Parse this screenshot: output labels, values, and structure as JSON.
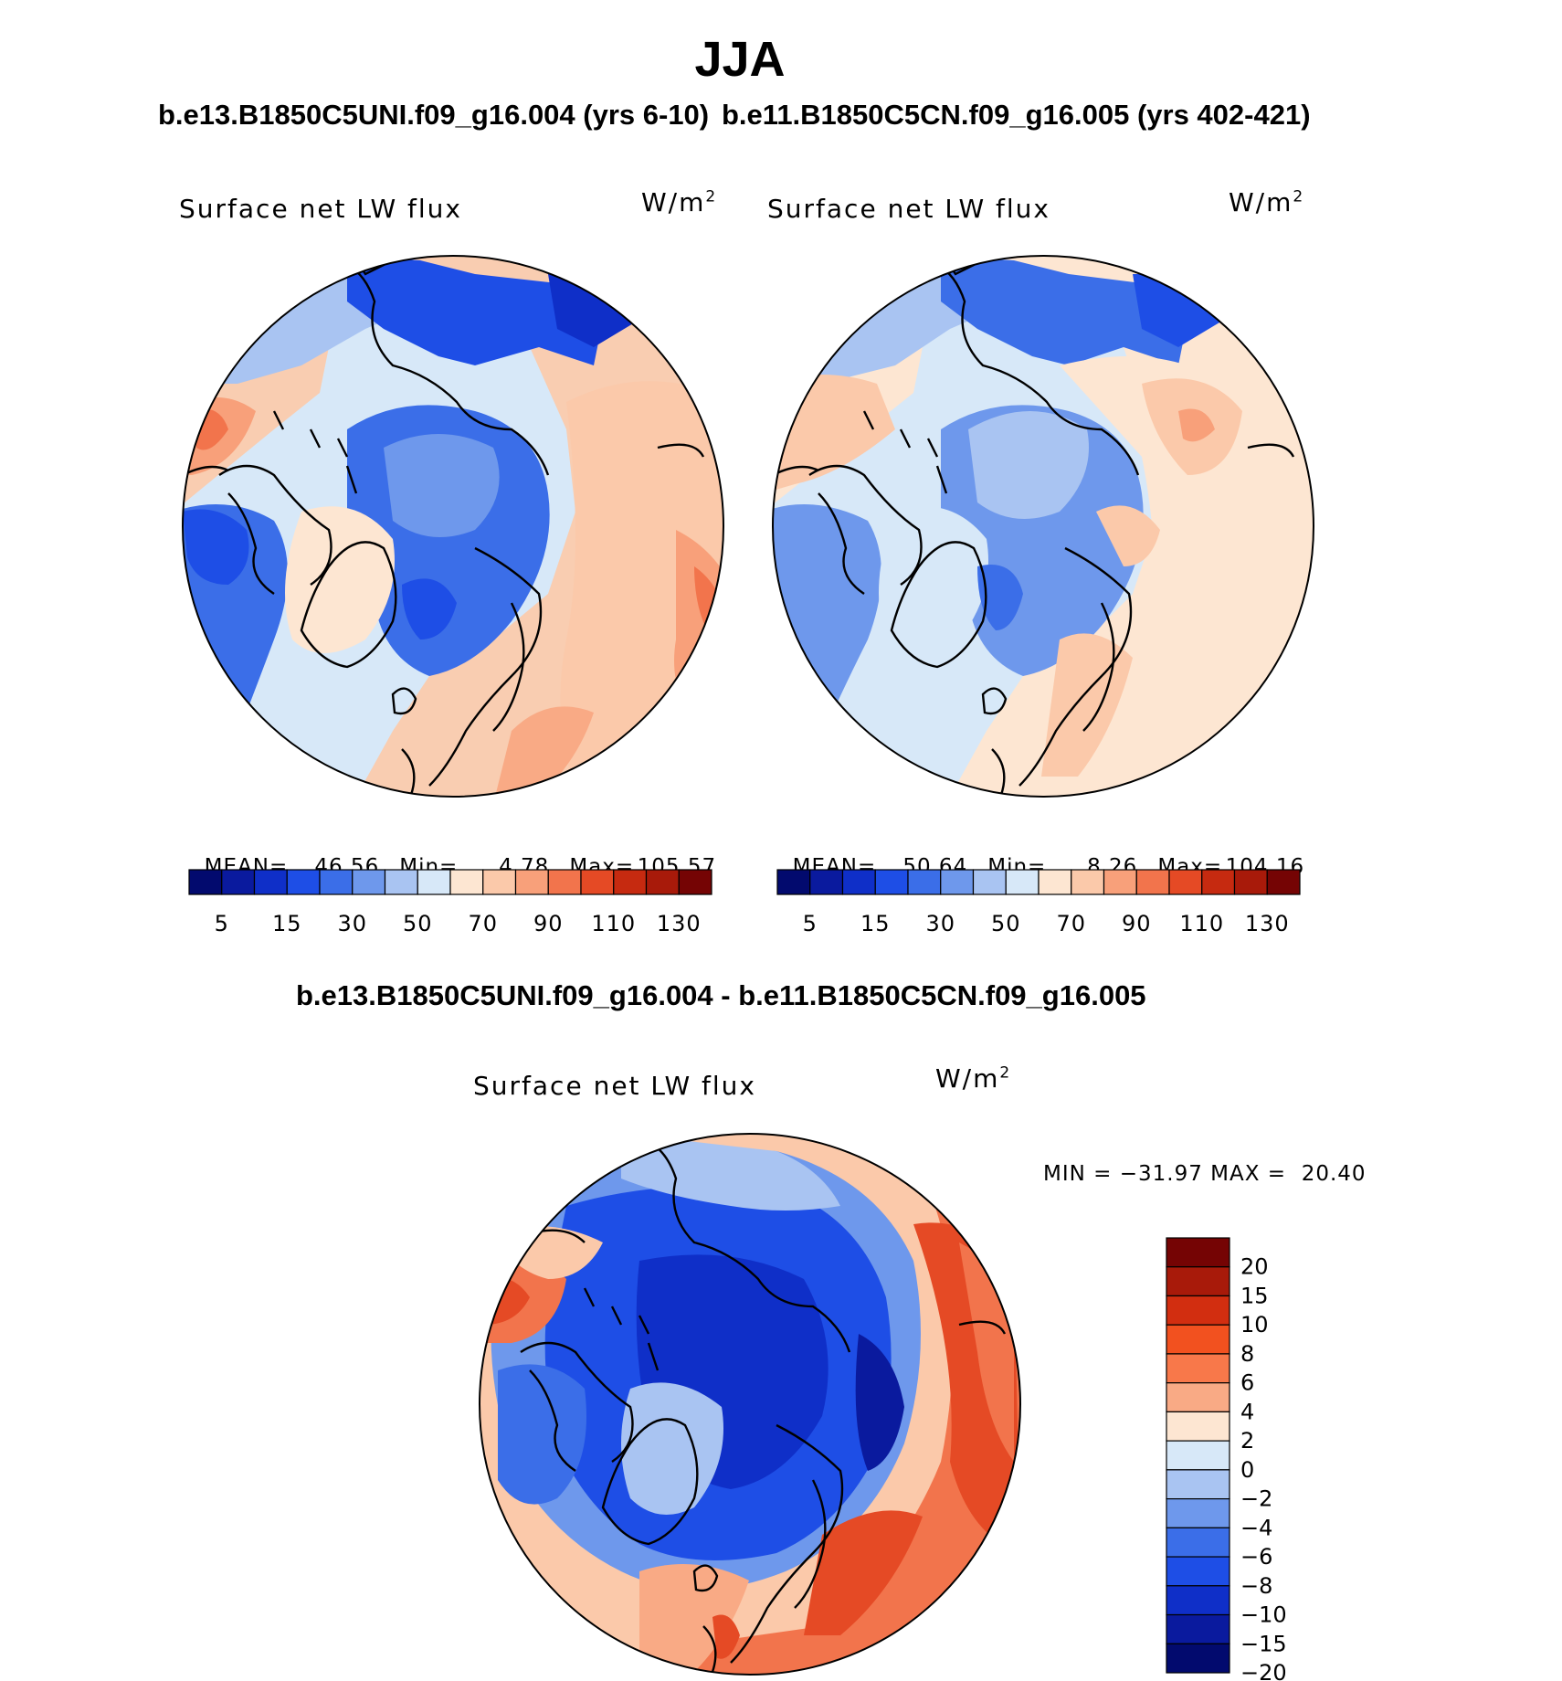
{
  "title": "JJA",
  "panels": [
    {
      "case": "b.e13.B1850C5UNI.f09_g16.004 (yrs 6-10)",
      "variable": "Surface net LW flux",
      "units": "W/m",
      "units_sup": "2",
      "stats": {
        "mean_label": "MEAN=",
        "mean": "46.56",
        "min_label": "Min=",
        "min": "4.78",
        "max_label": "Max=",
        "max": "105.57"
      }
    },
    {
      "case": "b.e11.B1850C5CN.f09_g16.005 (yrs 402-421)",
      "variable": "Surface net LW flux",
      "units": "W/m",
      "units_sup": "2",
      "stats": {
        "mean_label": "MEAN=",
        "mean": "50.64",
        "min_label": "Min=",
        "min": "8.26",
        "max_label": "Max=",
        "max": "104.16"
      }
    }
  ],
  "diff": {
    "title": "b.e13.B1850C5UNI.f09_g16.004 - b.e11.B1850C5CN.f09_g16.005",
    "variable": "Surface net LW flux",
    "units": "W/m",
    "units_sup": "2",
    "minmax": "MIN = −31.97 MAX =  20.40"
  },
  "colorbar_abs": {
    "colors": [
      "#020a6e",
      "#0a1a9e",
      "#0f2fc8",
      "#1e4ee6",
      "#3b6ee8",
      "#6e98ec",
      "#a9c4f2",
      "#d7e8f8",
      "#fde6d2",
      "#fbc9aa",
      "#f8a07a",
      "#f2744c",
      "#e54a25",
      "#c62a10",
      "#a81a0a",
      "#750404"
    ],
    "ticks": [
      "5",
      "15",
      "30",
      "50",
      "70",
      "90",
      "110",
      "130"
    ]
  },
  "colorbar_diff": {
    "colors": [
      "#750404",
      "#a81a0a",
      "#d22e10",
      "#f2511f",
      "#f8784a",
      "#f9aa85",
      "#fde6d2",
      "#d7e8f8",
      "#a9c4f2",
      "#6e98ec",
      "#3b6ee8",
      "#1e4ee6",
      "#0f2fc8",
      "#0a1a9e",
      "#020a6e"
    ],
    "labels": [
      "20",
      "15",
      "10",
      "8",
      "6",
      "4",
      "2",
      "0",
      "−2",
      "−4",
      "−6",
      "−8",
      "−10",
      "−15",
      "−20"
    ]
  }
}
